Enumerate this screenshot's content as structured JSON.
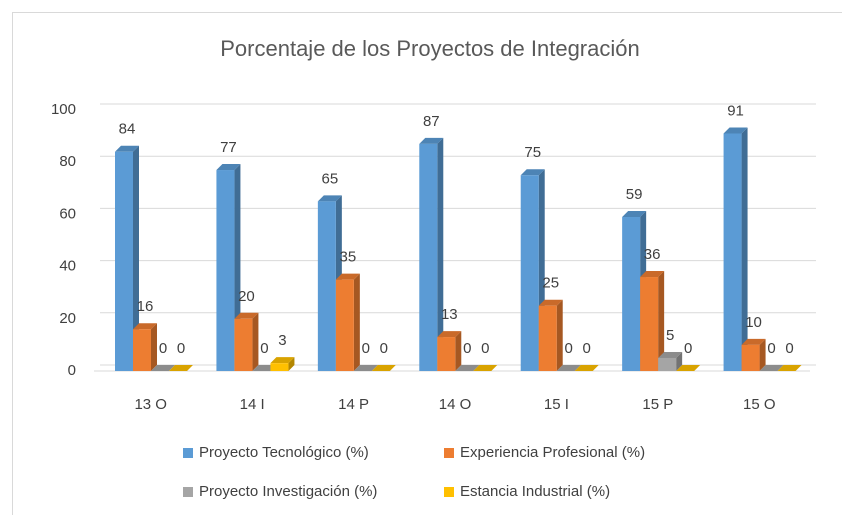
{
  "chart_data": {
    "type": "bar",
    "title": "Porcentaje de los Proyectos de Integración",
    "categories": [
      "13 O",
      "14 I",
      "14 P",
      "14 O",
      "15 I",
      "15 P",
      "15 O"
    ],
    "series": [
      {
        "name": "Proyecto Tecnológico (%)",
        "color": "#5b9bd5",
        "values": [
          84,
          77,
          65,
          87,
          75,
          59,
          91
        ]
      },
      {
        "name": "Experiencia Profesional (%)",
        "color": "#ed7d31",
        "values": [
          16,
          20,
          35,
          13,
          25,
          36,
          10
        ]
      },
      {
        "name": "Proyecto Investigación (%)",
        "color": "#a5a5a5",
        "values": [
          0,
          0,
          0,
          0,
          0,
          5,
          0
        ]
      },
      {
        "name": "Estancia Industrial (%)",
        "color": "#ffc000",
        "values": [
          0,
          3,
          0,
          0,
          0,
          0,
          0
        ]
      }
    ],
    "ylim": [
      0,
      100
    ],
    "yticks": [
      0,
      20,
      40,
      60,
      80,
      100
    ],
    "grid": true,
    "legend": "bottom"
  }
}
